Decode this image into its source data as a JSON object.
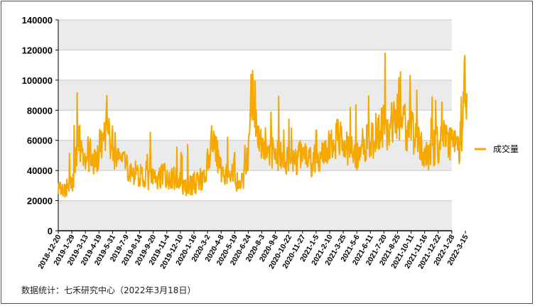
{
  "chart_data": {
    "type": "line",
    "title": "",
    "xlabel": "",
    "ylabel": "",
    "ylim": [
      0,
      140000
    ],
    "y_ticks": [
      "0",
      "20000",
      "40000",
      "60000",
      "80000",
      "100000",
      "120000",
      "140000"
    ],
    "x_tick_labels": [
      "2018-12-20",
      "2019-1-29",
      "2019-3-13",
      "2019-4-19",
      "2019-5-31",
      "2019-7-9",
      "2019-8-14",
      "2019-9-20",
      "2019-11-4",
      "2019-12-10",
      "2020-1-16",
      "2020-3-2",
      "2020-4-8",
      "2020-5-19",
      "2020-6-24",
      "2020-8-3",
      "2020-9-8",
      "2020-10-22",
      "2020-11-27",
      "2021-1-5",
      "2021-2-10",
      "2021-3-25",
      "2021-5-6",
      "2021-6-11",
      "2021-7-20",
      "2021-8-25",
      "2021-10-11",
      "2021-11-16",
      "2021-12-22",
      "2022-1-28",
      "2022-3-15"
    ],
    "grid": "horizontal bands",
    "legend_position": "right",
    "series": [
      {
        "name": "成交量",
        "color": "#F5A800",
        "keypoints": [
          [
            0,
            30000
          ],
          [
            0.3,
            25000
          ],
          [
            0.6,
            28000
          ],
          [
            1.0,
            30000
          ],
          [
            1.4,
            52000
          ],
          [
            1.7,
            57000
          ],
          [
            2.0,
            48000
          ],
          [
            2.4,
            50000
          ],
          [
            2.8,
            45000
          ],
          [
            3.1,
            58000
          ],
          [
            3.4,
            60000
          ],
          [
            3.6,
            75000
          ],
          [
            3.8,
            58000
          ],
          [
            4.2,
            52000
          ],
          [
            4.6,
            46000
          ],
          [
            5.0,
            43000
          ],
          [
            5.4,
            40000
          ],
          [
            5.8,
            38000
          ],
          [
            6.2,
            35000
          ],
          [
            6.6,
            35000
          ],
          [
            7.0,
            34000
          ],
          [
            7.4,
            36000
          ],
          [
            7.8,
            37000
          ],
          [
            8.2,
            33000
          ],
          [
            8.6,
            35000
          ],
          [
            9.0,
            32000
          ],
          [
            9.4,
            30000
          ],
          [
            9.8,
            30000
          ],
          [
            10.2,
            32000
          ],
          [
            10.6,
            35000
          ],
          [
            11.0,
            45000
          ],
          [
            11.3,
            55000
          ],
          [
            11.5,
            65000
          ],
          [
            11.7,
            50000
          ],
          [
            12.1,
            40000
          ],
          [
            12.5,
            36000
          ],
          [
            12.9,
            33000
          ],
          [
            13.3,
            31000
          ],
          [
            13.7,
            36000
          ],
          [
            14.0,
            50000
          ],
          [
            14.2,
            90000
          ],
          [
            14.4,
            85000
          ],
          [
            14.7,
            65000
          ],
          [
            15.1,
            58000
          ],
          [
            15.5,
            54000
          ],
          [
            15.9,
            50000
          ],
          [
            16.3,
            50000
          ],
          [
            16.7,
            46000
          ],
          [
            17.1,
            44000
          ],
          [
            17.5,
            46000
          ],
          [
            17.9,
            50000
          ],
          [
            18.3,
            52000
          ],
          [
            18.7,
            45000
          ],
          [
            19.1,
            50000
          ],
          [
            19.5,
            48000
          ],
          [
            19.9,
            58000
          ],
          [
            20.3,
            60000
          ],
          [
            20.7,
            62000
          ],
          [
            21.1,
            56000
          ],
          [
            21.5,
            52000
          ],
          [
            21.9,
            50000
          ],
          [
            22.3,
            56000
          ],
          [
            22.7,
            58000
          ],
          [
            23.1,
            60000
          ],
          [
            23.5,
            65000
          ],
          [
            23.9,
            70000
          ],
          [
            24.3,
            66000
          ],
          [
            24.7,
            72000
          ],
          [
            25.0,
            78000
          ],
          [
            25.3,
            70000
          ],
          [
            25.7,
            68000
          ],
          [
            26.1,
            66000
          ],
          [
            26.5,
            62000
          ],
          [
            26.9,
            55000
          ],
          [
            27.3,
            52000
          ],
          [
            27.7,
            56000
          ],
          [
            28.1,
            58000
          ],
          [
            28.5,
            62000
          ],
          [
            28.9,
            60000
          ],
          [
            29.3,
            55000
          ],
          [
            29.6,
            48000
          ],
          [
            29.8,
            75000
          ],
          [
            30.0,
            105000
          ],
          [
            30.15,
            85000
          ]
        ]
      }
    ]
  },
  "footer": {
    "source_label": "数据统计：七禾研究中心（2022年3月18日）"
  }
}
